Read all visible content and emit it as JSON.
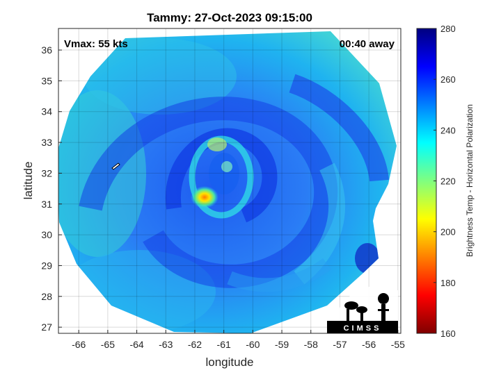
{
  "chart_data": {
    "type": "heatmap",
    "title": "Tammy: 27-Oct-2023 09:15:00",
    "xlabel": "longitude",
    "ylabel": "latitude",
    "xlim": [
      -66.7,
      -54.9
    ],
    "ylim": [
      26.8,
      36.7
    ],
    "xticks": [
      -66,
      -65,
      -64,
      -63,
      -62,
      -61,
      -60,
      -59,
      -58,
      -57,
      -56,
      -55
    ],
    "yticks": [
      27,
      28,
      29,
      30,
      31,
      32,
      33,
      34,
      35,
      36
    ],
    "grid": true,
    "annotations": {
      "vmax": "Vmax: 55 kts",
      "time_away": "00:40 away",
      "logo_text": "CIMSS"
    },
    "colorbar": {
      "label": "Brightness Temp - Horizontal Polarization",
      "ticks": [
        160,
        180,
        200,
        220,
        240,
        260,
        280
      ],
      "range": [
        160,
        280
      ],
      "colormap": "jet"
    },
    "storm_center": {
      "lon": -61.6,
      "lat": 31.2
    },
    "min_brightness_temp": 200
  }
}
